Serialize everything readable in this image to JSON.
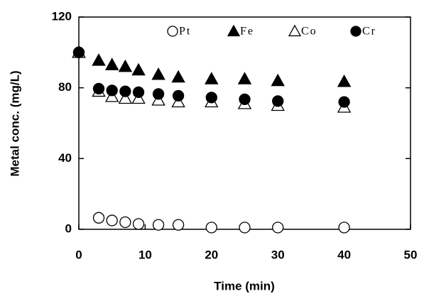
{
  "chart_data": {
    "type": "scatter",
    "x_label": "Time (min)",
    "y_label": "Metal conc. (mg/L)",
    "x": [
      0,
      3,
      5,
      7,
      9,
      12,
      15,
      20,
      25,
      30,
      40
    ],
    "xlim": [
      0,
      50
    ],
    "xticks": [
      0,
      10,
      20,
      30,
      40,
      50
    ],
    "ylim": [
      0,
      120
    ],
    "yticks": [
      0,
      40,
      80,
      120
    ],
    "series": [
      {
        "name": "Pt",
        "color": "#000000",
        "marker": "circle",
        "filled": false,
        "values": [
          100,
          6.5,
          5,
          4,
          3,
          2.5,
          2.5,
          1,
          1,
          1,
          1
        ]
      },
      {
        "name": "Fe",
        "color": "#000000",
        "marker": "triangle",
        "filled": true,
        "values": [
          100,
          95.5,
          93,
          92,
          90,
          87.5,
          86,
          85,
          85,
          84,
          83.5
        ]
      },
      {
        "name": "Co",
        "color": "#000000",
        "marker": "triangle",
        "filled": false,
        "values": [
          100,
          78,
          75,
          74,
          74,
          73,
          72,
          72,
          71,
          70,
          69
        ]
      },
      {
        "name": "Cr",
        "color": "#000000",
        "marker": "circle",
        "filled": true,
        "values": [
          100,
          79.5,
          78.5,
          78,
          77.5,
          76.5,
          75.5,
          74.5,
          73.5,
          72.5,
          72
        ]
      }
    ]
  }
}
